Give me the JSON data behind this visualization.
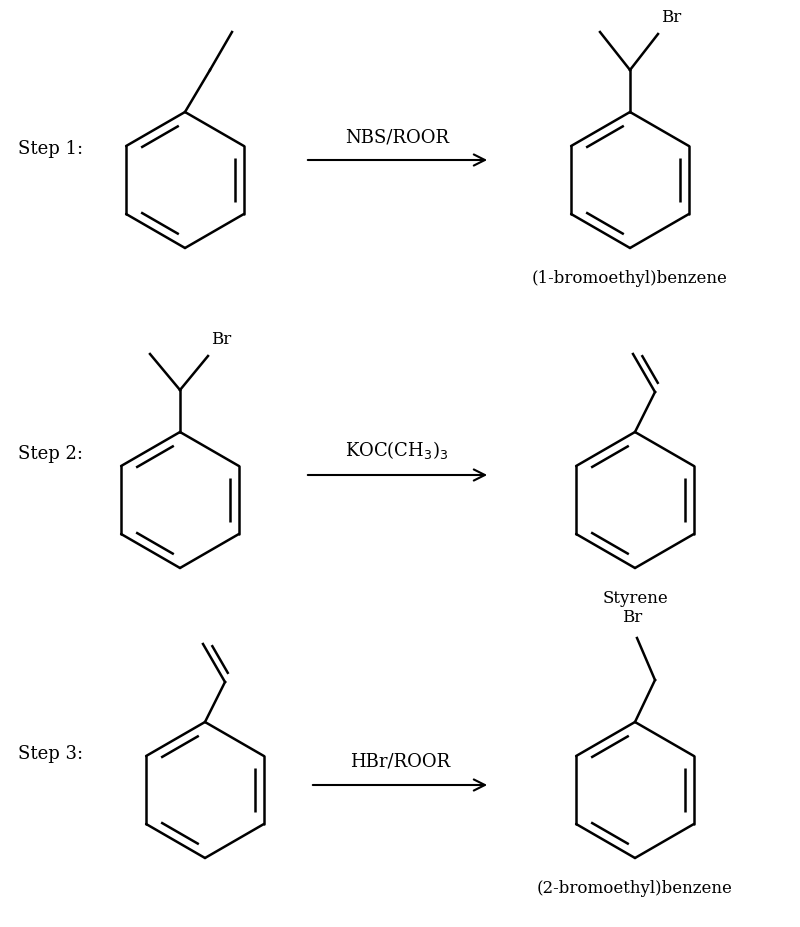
{
  "background_color": "#ffffff",
  "text_color": "#000000",
  "line_color": "#000000",
  "step_labels": [
    "Step 1:",
    "Step 2:",
    "Step 3:"
  ],
  "reagent1": "NBS/ROOR",
  "reagent2": "KOC(CH3)3",
  "reagent3": "HBr/ROOR",
  "product_labels": [
    "(1-bromoethyl)benzene",
    "Styrene",
    "(2-bromoethyl)benzene"
  ],
  "figsize": [
    8.0,
    9.27
  ],
  "dpi": 100,
  "font_size_step": 13,
  "font_size_reagent": 13,
  "font_size_label": 12,
  "font_size_br": 12,
  "font_size_subscript": 9
}
